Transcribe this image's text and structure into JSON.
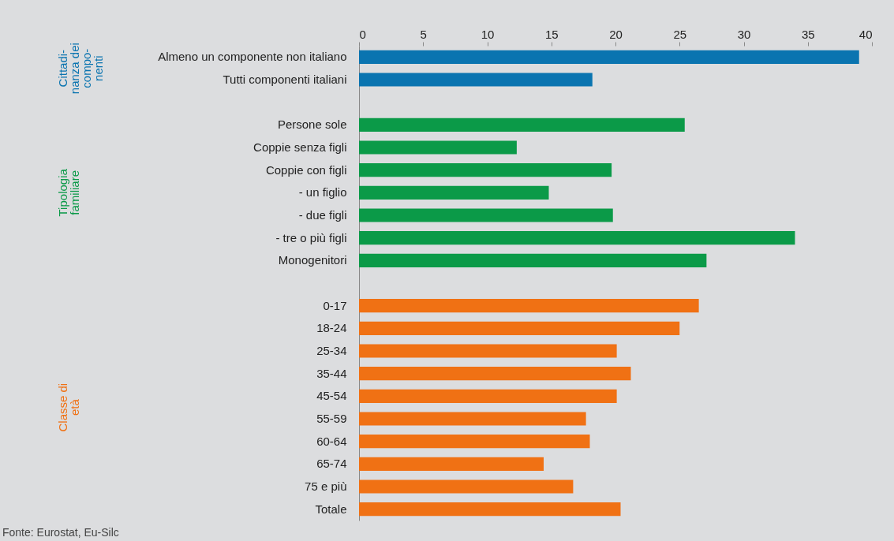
{
  "chart_data": {
    "type": "bar",
    "orientation": "horizontal",
    "categories": [
      "Almeno un componente non italiano",
      "Tutti componenti italiani",
      null,
      "Persone sole",
      "Coppie senza figli",
      "Coppie con figli",
      "- un figlio",
      "- due figli",
      "- tre o più figli",
      "Monogenitori",
      null,
      "0-17",
      "18-24",
      "25-34",
      "35-44",
      "45-54",
      "55-59",
      "60-64",
      "65-74",
      "75 e più",
      "Totale"
    ],
    "series": [
      {
        "name": "Cittadi-nanza dei compo-nenti",
        "color": "#0a74b0",
        "values": [
          39.0,
          18.2,
          null,
          null,
          null,
          null,
          null,
          null,
          null,
          null,
          null,
          null,
          null,
          null,
          null,
          null,
          null,
          null,
          null,
          null,
          null
        ]
      },
      {
        "name": "Tipologia familiare",
        "color": "#0b9a48",
        "values": [
          null,
          null,
          null,
          25.4,
          12.3,
          19.7,
          14.8,
          19.8,
          34.0,
          27.1,
          null,
          null,
          null,
          null,
          null,
          null,
          null,
          null,
          null,
          null,
          null
        ]
      },
      {
        "name": "Classe di età",
        "color": "#f07114",
        "values": [
          null,
          null,
          null,
          null,
          null,
          null,
          null,
          null,
          null,
          null,
          null,
          26.5,
          25.0,
          20.1,
          21.2,
          20.1,
          17.7,
          18.0,
          14.4,
          16.7,
          20.4
        ]
      }
    ],
    "xlim": [
      0,
      40
    ],
    "xticks": [
      0,
      5,
      10,
      15,
      20,
      25,
      30,
      35,
      40
    ],
    "annotations": [
      "Fonte: Eurostat, Eu-Silc"
    ]
  }
}
